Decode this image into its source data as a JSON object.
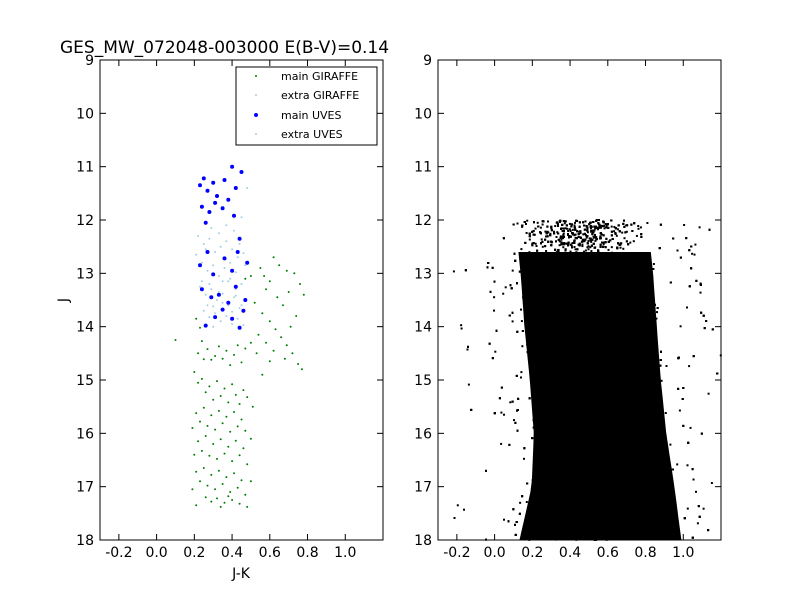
{
  "title": "GES_MW_072048-003000 E(B-V)=0.14",
  "chart_data": [
    {
      "type": "scatter",
      "title": "GES_MW_072048-003000 E(B-V)=0.14",
      "xlabel": "J-K",
      "ylabel": "J",
      "xlim": [
        -0.3,
        1.2
      ],
      "ylim": [
        18,
        9
      ],
      "y_inverted": true,
      "grid": false,
      "xticks": [
        "-0.2",
        "0.0",
        "0.2",
        "0.4",
        "0.6",
        "0.8",
        "1.0"
      ],
      "yticks": [
        "9",
        "10",
        "11",
        "12",
        "13",
        "14",
        "15",
        "16",
        "17",
        "18"
      ],
      "legend": {
        "placement": "top-right"
      },
      "series": [
        {
          "name": "main GIRAFFE",
          "color": "#008000",
          "marker": "dot-small",
          "points": [
            [
              0.1,
              14.25
            ],
            [
              0.21,
              13.85
            ],
            [
              0.23,
              14.02
            ],
            [
              0.24,
              14.27
            ],
            [
              0.22,
              14.5
            ],
            [
              0.25,
              14.61
            ],
            [
              0.27,
              14.42
            ],
            [
              0.29,
              14.62
            ],
            [
              0.31,
              14.55
            ],
            [
              0.33,
              14.37
            ],
            [
              0.35,
              14.6
            ],
            [
              0.37,
              14.45
            ],
            [
              0.39,
              14.72
            ],
            [
              0.41,
              14.53
            ],
            [
              0.43,
              14.35
            ],
            [
              0.45,
              14.67
            ],
            [
              0.47,
              14.41
            ],
            [
              0.2,
              14.85
            ],
            [
              0.22,
              15.05
            ],
            [
              0.24,
              14.98
            ],
            [
              0.26,
              15.23
            ],
            [
              0.28,
              15.12
            ],
            [
              0.3,
              15.37
            ],
            [
              0.32,
              15.02
            ],
            [
              0.34,
              15.3
            ],
            [
              0.36,
              15.16
            ],
            [
              0.38,
              15.42
            ],
            [
              0.4,
              15.08
            ],
            [
              0.42,
              15.28
            ],
            [
              0.44,
              15.45
            ],
            [
              0.46,
              15.19
            ],
            [
              0.48,
              15.32
            ],
            [
              0.21,
              15.62
            ],
            [
              0.23,
              15.78
            ],
            [
              0.25,
              15.52
            ],
            [
              0.27,
              15.86
            ],
            [
              0.29,
              15.66
            ],
            [
              0.31,
              15.93
            ],
            [
              0.33,
              15.58
            ],
            [
              0.35,
              15.81
            ],
            [
              0.37,
              15.69
            ],
            [
              0.39,
              15.97
            ],
            [
              0.41,
              15.6
            ],
            [
              0.43,
              15.87
            ],
            [
              0.45,
              15.74
            ],
            [
              0.47,
              15.95
            ],
            [
              0.22,
              16.15
            ],
            [
              0.24,
              16.33
            ],
            [
              0.26,
              16.05
            ],
            [
              0.28,
              16.42
            ],
            [
              0.3,
              16.2
            ],
            [
              0.32,
              16.48
            ],
            [
              0.34,
              16.11
            ],
            [
              0.36,
              16.38
            ],
            [
              0.38,
              16.25
            ],
            [
              0.4,
              16.52
            ],
            [
              0.42,
              16.14
            ],
            [
              0.44,
              16.41
            ],
            [
              0.46,
              16.28
            ],
            [
              0.48,
              16.58
            ],
            [
              0.21,
              16.72
            ],
            [
              0.23,
              16.9
            ],
            [
              0.25,
              16.65
            ],
            [
              0.27,
              16.98
            ],
            [
              0.29,
              16.78
            ],
            [
              0.31,
              17.05
            ],
            [
              0.33,
              16.7
            ],
            [
              0.35,
              16.95
            ],
            [
              0.37,
              16.82
            ],
            [
              0.39,
              17.1
            ],
            [
              0.41,
              16.75
            ],
            [
              0.43,
              17.02
            ],
            [
              0.45,
              16.88
            ],
            [
              0.47,
              17.15
            ],
            [
              0.26,
              17.2
            ],
            [
              0.29,
              17.28
            ],
            [
              0.32,
              17.22
            ],
            [
              0.36,
              17.3
            ],
            [
              0.4,
              17.25
            ],
            [
              0.44,
              17.32
            ],
            [
              0.19,
              17.05
            ],
            [
              0.2,
              16.4
            ],
            [
              0.19,
              15.9
            ],
            [
              0.5,
              16.1
            ],
            [
              0.5,
              16.9
            ],
            [
              0.51,
              15.5
            ],
            [
              0.48,
              17.38
            ],
            [
              0.21,
              17.35
            ],
            [
              0.34,
              17.38
            ],
            [
              0.38,
              17.18
            ],
            [
              0.47,
              13.1
            ],
            [
              0.5,
              13.05
            ],
            [
              0.55,
              12.9
            ],
            [
              0.58,
              13.3
            ],
            [
              0.6,
              13.15
            ],
            [
              0.64,
              13.45
            ],
            [
              0.67,
              13.6
            ],
            [
              0.7,
              13.35
            ],
            [
              0.73,
              13.0
            ],
            [
              0.76,
              13.2
            ],
            [
              0.78,
              13.4
            ],
            [
              0.52,
              13.55
            ],
            [
              0.56,
              13.75
            ],
            [
              0.6,
              13.9
            ],
            [
              0.63,
              14.05
            ],
            [
              0.66,
              14.2
            ],
            [
              0.69,
              14.35
            ],
            [
              0.72,
              14.5
            ],
            [
              0.75,
              14.7
            ],
            [
              0.77,
              14.8
            ],
            [
              0.54,
              14.15
            ],
            [
              0.58,
              14.3
            ],
            [
              0.62,
              14.45
            ],
            [
              0.68,
              14.6
            ],
            [
              0.71,
              14.0
            ],
            [
              0.74,
              13.8
            ],
            [
              0.65,
              12.85
            ],
            [
              0.69,
              12.95
            ],
            [
              0.62,
              12.7
            ],
            [
              0.57,
              13.05
            ],
            [
              0.5,
              14.3
            ],
            [
              0.53,
              14.5
            ],
            [
              0.56,
              14.9
            ],
            [
              0.6,
              14.65
            ]
          ]
        },
        {
          "name": "extra GIRAFFE",
          "color": "#a6cee3",
          "marker": "dot-small",
          "points": [
            [
              0.22,
              12.3
            ],
            [
              0.25,
              12.45
            ],
            [
              0.28,
              12.35
            ],
            [
              0.31,
              12.6
            ],
            [
              0.34,
              12.5
            ],
            [
              0.37,
              12.4
            ],
            [
              0.4,
              12.55
            ],
            [
              0.43,
              12.7
            ],
            [
              0.46,
              12.62
            ],
            [
              0.24,
              12.8
            ],
            [
              0.27,
              12.95
            ],
            [
              0.3,
              12.85
            ],
            [
              0.33,
              13.05
            ],
            [
              0.36,
              12.9
            ],
            [
              0.39,
              13.1
            ],
            [
              0.42,
              12.98
            ],
            [
              0.45,
              13.2
            ],
            [
              0.23,
              13.25
            ],
            [
              0.26,
              13.4
            ],
            [
              0.29,
              13.3
            ],
            [
              0.32,
              13.5
            ],
            [
              0.35,
              13.38
            ],
            [
              0.38,
              13.6
            ],
            [
              0.41,
              13.45
            ],
            [
              0.44,
              13.65
            ],
            [
              0.47,
              13.52
            ],
            [
              0.25,
              13.7
            ],
            [
              0.28,
              13.82
            ],
            [
              0.31,
              13.75
            ],
            [
              0.34,
              13.9
            ],
            [
              0.37,
              13.8
            ],
            [
              0.4,
              13.95
            ],
            [
              0.43,
              13.85
            ],
            [
              0.46,
              13.97
            ],
            [
              0.29,
              12.15
            ],
            [
              0.33,
              12.25
            ],
            [
              0.37,
              12.1
            ],
            [
              0.41,
              12.2
            ],
            [
              0.45,
              11.95
            ],
            [
              0.48,
              11.4
            ],
            [
              0.21,
              12.65
            ],
            [
              0.24,
              13.15
            ],
            [
              0.27,
              13.6
            ],
            [
              0.3,
              14.0
            ],
            [
              0.35,
              13.15
            ],
            [
              0.39,
              12.8
            ],
            [
              0.42,
              13.3
            ],
            [
              0.44,
              12.45
            ],
            [
              0.47,
              12.85
            ],
            [
              0.26,
              12.55
            ]
          ]
        },
        {
          "name": "main UVES",
          "color": "#0000ff",
          "marker": "dot-large",
          "points": [
            [
              0.23,
              11.35
            ],
            [
              0.25,
              11.22
            ],
            [
              0.27,
              11.45
            ],
            [
              0.3,
              11.3
            ],
            [
              0.32,
              11.55
            ],
            [
              0.36,
              11.25
            ],
            [
              0.4,
              11.0
            ],
            [
              0.45,
              11.1
            ],
            [
              0.42,
              11.4
            ],
            [
              0.24,
              11.75
            ],
            [
              0.28,
              11.85
            ],
            [
              0.31,
              11.68
            ],
            [
              0.35,
              11.78
            ],
            [
              0.38,
              11.62
            ],
            [
              0.41,
              11.92
            ],
            [
              0.26,
              12.05
            ],
            [
              0.44,
              12.35
            ],
            [
              0.48,
              12.8
            ],
            [
              0.23,
              12.85
            ],
            [
              0.27,
              12.6
            ],
            [
              0.3,
              13.02
            ],
            [
              0.36,
              12.72
            ],
            [
              0.4,
              12.95
            ],
            [
              0.43,
              12.6
            ],
            [
              0.24,
              13.3
            ],
            [
              0.29,
              13.45
            ],
            [
              0.33,
              13.4
            ],
            [
              0.38,
              13.55
            ],
            [
              0.42,
              13.25
            ],
            [
              0.46,
              13.7
            ],
            [
              0.26,
              13.98
            ],
            [
              0.31,
              13.82
            ],
            [
              0.35,
              13.68
            ],
            [
              0.4,
              13.85
            ],
            [
              0.44,
              14.02
            ],
            [
              0.47,
              13.5
            ]
          ]
        },
        {
          "name": "extra UVES",
          "color": "#a6cee3",
          "marker": "dot-small",
          "points": [
            [
              0.28,
              13.2
            ],
            [
              0.33,
              13.35
            ],
            [
              0.38,
              13.15
            ],
            [
              0.42,
              13.42
            ],
            [
              0.3,
              13.62
            ],
            [
              0.35,
              13.55
            ],
            [
              0.4,
              13.72
            ],
            [
              0.45,
              13.6
            ]
          ]
        }
      ]
    },
    {
      "type": "scatter",
      "title": "",
      "xlabel": "",
      "ylabel": "",
      "xlim": [
        -0.3,
        1.2
      ],
      "ylim": [
        18,
        9
      ],
      "y_inverted": true,
      "grid": false,
      "xticks": [
        "-0.2",
        "0.0",
        "0.2",
        "0.4",
        "0.6",
        "0.8",
        "1.0"
      ],
      "yticks": [
        "9",
        "10",
        "11",
        "12",
        "13",
        "14",
        "15",
        "16",
        "17",
        "18"
      ],
      "series": [
        {
          "color": "#000000",
          "marker": "dot-small",
          "density_envelope": [
            [
              12.0,
              0.0,
              0.9
            ],
            [
              13.0,
              0.03,
              0.93
            ],
            [
              14.0,
              0.05,
              0.95
            ],
            [
              15.0,
              0.08,
              0.97
            ],
            [
              16.0,
              0.1,
              1.0
            ],
            [
              17.0,
              0.08,
              1.05
            ],
            [
              18.0,
              0.0,
              1.1
            ]
          ],
          "sample_count": 9000
        }
      ]
    }
  ]
}
